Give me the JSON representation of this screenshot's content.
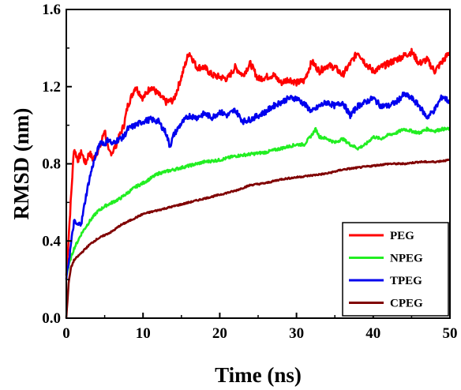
{
  "chart_data": {
    "type": "line",
    "xlabel": "Time (ns)",
    "ylabel": "RMSD (nm)",
    "xlim": [
      0,
      50
    ],
    "ylim": [
      0.0,
      1.6
    ],
    "x_ticks": [
      "0",
      "10",
      "20",
      "30",
      "40",
      "50"
    ],
    "y_ticks": [
      "0.0",
      "0.4",
      "0.8",
      "1.2",
      "1.6"
    ],
    "grid": false,
    "legend_position": "bottom-right",
    "series": [
      {
        "name": "PEG",
        "color": "#ff0000",
        "x": [
          0,
          0.5,
          1,
          1.5,
          2,
          2.5,
          3,
          3.5,
          4,
          4.5,
          5,
          5.5,
          6,
          6.5,
          7,
          7.5,
          8,
          9,
          10,
          11,
          12,
          13,
          14,
          15,
          16,
          17,
          18,
          19,
          20,
          21,
          22,
          23,
          24,
          25,
          26,
          27,
          28,
          29,
          30,
          31,
          32,
          33,
          34,
          35,
          36,
          37,
          38,
          39,
          40,
          41,
          42,
          43,
          44,
          45,
          46,
          47,
          48,
          49,
          50
        ],
        "values": [
          0.22,
          0.55,
          0.88,
          0.82,
          0.86,
          0.8,
          0.86,
          0.82,
          0.86,
          0.9,
          0.98,
          0.86,
          0.86,
          0.9,
          0.95,
          1.0,
          1.1,
          1.2,
          1.14,
          1.2,
          1.16,
          1.12,
          1.13,
          1.25,
          1.38,
          1.3,
          1.3,
          1.26,
          1.25,
          1.24,
          1.3,
          1.26,
          1.32,
          1.24,
          1.25,
          1.26,
          1.22,
          1.24,
          1.22,
          1.23,
          1.33,
          1.28,
          1.31,
          1.3,
          1.26,
          1.32,
          1.38,
          1.32,
          1.28,
          1.3,
          1.32,
          1.34,
          1.36,
          1.38,
          1.32,
          1.34,
          1.28,
          1.33,
          1.38
        ]
      },
      {
        "name": "NPEG",
        "color": "#22ee22",
        "x": [
          0,
          0.5,
          1,
          1.5,
          2,
          3,
          4,
          5,
          6,
          7,
          8,
          9,
          10,
          12,
          14,
          16,
          18,
          20,
          22,
          24,
          26,
          28,
          30,
          31,
          32,
          32.5,
          33,
          34,
          35,
          36,
          37,
          38,
          39,
          40,
          41,
          42,
          43,
          44,
          45,
          46,
          47,
          48,
          49,
          50
        ],
        "values": [
          0.22,
          0.3,
          0.36,
          0.4,
          0.44,
          0.5,
          0.55,
          0.58,
          0.6,
          0.62,
          0.65,
          0.68,
          0.7,
          0.75,
          0.77,
          0.79,
          0.81,
          0.82,
          0.84,
          0.85,
          0.86,
          0.88,
          0.9,
          0.9,
          0.95,
          0.98,
          0.94,
          0.93,
          0.91,
          0.93,
          0.9,
          0.88,
          0.9,
          0.94,
          0.93,
          0.95,
          0.96,
          0.98,
          0.97,
          0.96,
          0.98,
          0.97,
          0.98,
          0.98
        ]
      },
      {
        "name": "TPEG",
        "color": "#0000ee",
        "x": [
          0,
          0.5,
          1,
          1.5,
          2,
          2.5,
          3,
          3.5,
          4,
          4.5,
          5,
          5.5,
          6,
          6.5,
          7,
          7.5,
          8,
          9,
          10,
          11,
          12,
          13,
          13.5,
          14,
          15,
          16,
          17,
          18,
          19,
          20,
          21,
          22,
          23,
          24,
          25,
          26,
          27,
          28,
          29,
          30,
          31,
          32,
          33,
          34,
          35,
          36,
          37,
          38,
          39,
          40,
          41,
          42,
          43,
          44,
          45,
          46,
          47,
          48,
          49,
          50
        ],
        "values": [
          0.2,
          0.35,
          0.5,
          0.48,
          0.5,
          0.62,
          0.72,
          0.8,
          0.86,
          0.92,
          0.9,
          0.93,
          0.9,
          0.92,
          0.93,
          0.94,
          0.98,
          1.0,
          1.02,
          1.03,
          1.02,
          0.96,
          0.89,
          0.95,
          1.01,
          1.05,
          1.04,
          1.06,
          1.04,
          1.07,
          1.05,
          1.08,
          1.02,
          1.03,
          1.05,
          1.07,
          1.1,
          1.12,
          1.14,
          1.14,
          1.11,
          1.07,
          1.1,
          1.12,
          1.1,
          1.12,
          1.05,
          1.1,
          1.12,
          1.14,
          1.1,
          1.1,
          1.12,
          1.16,
          1.14,
          1.1,
          1.04,
          1.08,
          1.15,
          1.12
        ]
      },
      {
        "name": "CPEG",
        "color": "#800000",
        "x": [
          0,
          0.3,
          0.6,
          1,
          2,
          3,
          4,
          5,
          6,
          7,
          8,
          9,
          10,
          12,
          14,
          16,
          18,
          20,
          22,
          24,
          26,
          28,
          30,
          32,
          34,
          36,
          38,
          40,
          42,
          44,
          46,
          48,
          50
        ],
        "values": [
          0.0,
          0.18,
          0.26,
          0.3,
          0.34,
          0.38,
          0.41,
          0.43,
          0.45,
          0.48,
          0.5,
          0.52,
          0.54,
          0.56,
          0.58,
          0.6,
          0.62,
          0.64,
          0.66,
          0.69,
          0.7,
          0.72,
          0.73,
          0.74,
          0.75,
          0.77,
          0.78,
          0.79,
          0.8,
          0.8,
          0.81,
          0.81,
          0.82
        ]
      }
    ]
  }
}
